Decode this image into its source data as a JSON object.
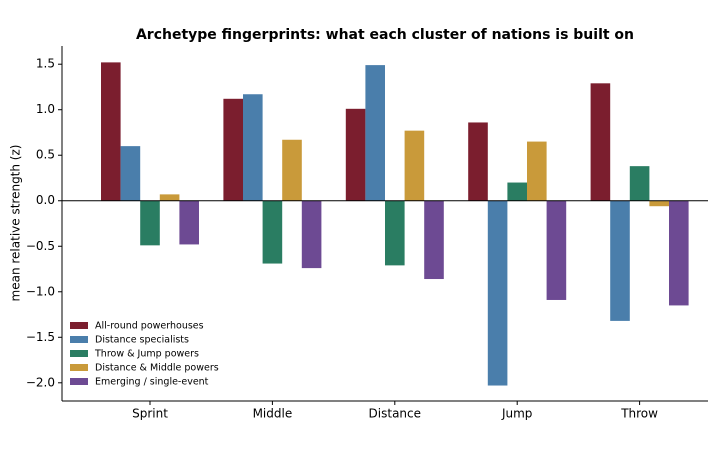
{
  "chart_data": {
    "type": "bar",
    "title": "Archetype fingerprints: what each cluster of nations is built on",
    "y_label": "mean relative strength (z)",
    "categories": [
      "Sprint",
      "Middle",
      "Distance",
      "Jump",
      "Throw"
    ],
    "series": [
      {
        "name": "All-round powerhouses",
        "color": "#7b1e2e",
        "values": [
          1.52,
          1.12,
          1.01,
          0.86,
          1.29
        ]
      },
      {
        "name": "Distance specialists",
        "color": "#4a7eab",
        "values": [
          0.6,
          1.17,
          1.49,
          -2.03,
          -1.32
        ]
      },
      {
        "name": "Throw & Jump powers",
        "color": "#2a7d62",
        "values": [
          -0.49,
          -0.69,
          -0.71,
          0.2,
          0.38
        ]
      },
      {
        "name": "Distance & Middle powers",
        "color": "#c99a3a",
        "values": [
          0.07,
          0.67,
          0.77,
          0.65,
          -0.06
        ]
      },
      {
        "name": "Emerging / single-event",
        "color": "#6d4a93",
        "values": [
          -0.48,
          -0.74,
          -0.86,
          -1.09,
          -1.15
        ]
      }
    ],
    "ylim": [
      -2.2,
      1.7
    ],
    "yticks": [
      {
        "value": -2,
        "label": "−2.0"
      },
      {
        "value": -1.5,
        "label": "−1.5"
      },
      {
        "value": -1,
        "label": "−1.0"
      },
      {
        "value": -0.5,
        "label": "−0.5"
      },
      {
        "value": 0,
        "label": "0.0"
      },
      {
        "value": 0.5,
        "label": "0.5"
      },
      {
        "value": 1,
        "label": "1.0"
      },
      {
        "value": 1.5,
        "label": "1.5"
      }
    ],
    "legend": "lower left",
    "zero_line": true
  }
}
